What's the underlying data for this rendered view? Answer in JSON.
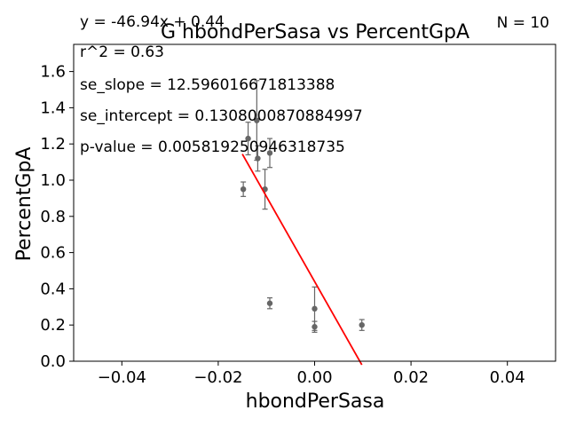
{
  "chart_data": {
    "type": "scatter",
    "title": "G hbondPerSasa vs PercentGpA",
    "xlabel": "hbondPerSasa",
    "ylabel": "PercentGpA",
    "xlim": [
      -0.05,
      0.05
    ],
    "ylim": [
      0.0,
      1.75
    ],
    "xticks": [
      -0.04,
      -0.02,
      0.0,
      0.02,
      0.04
    ],
    "xtick_labels": [
      "−0.04",
      "−0.02",
      "0.00",
      "0.02",
      "0.04"
    ],
    "yticks": [
      0.0,
      0.2,
      0.4,
      0.6,
      0.8,
      1.0,
      1.2,
      1.4,
      1.6
    ],
    "ytick_labels": [
      "0.0",
      "0.2",
      "0.4",
      "0.6",
      "0.8",
      "1.0",
      "1.2",
      "1.4",
      "1.6"
    ],
    "grid": false,
    "points": [
      {
        "x": -0.0148,
        "y": 0.95,
        "err": 0.04
      },
      {
        "x": -0.0138,
        "y": 1.23,
        "err": 0.09
      },
      {
        "x": -0.012,
        "y": 1.33,
        "err": 0.22
      },
      {
        "x": -0.0118,
        "y": 1.12,
        "err": 0.07
      },
      {
        "x": -0.0103,
        "y": 0.95,
        "err": 0.11
      },
      {
        "x": -0.0093,
        "y": 1.15,
        "err": 0.08
      },
      {
        "x": -0.0093,
        "y": 0.32,
        "err": 0.03
      },
      {
        "x": 0.0,
        "y": 0.29,
        "err": 0.12
      },
      {
        "x": 0.0,
        "y": 0.19,
        "err": 0.03
      },
      {
        "x": 0.0098,
        "y": 0.2,
        "err": 0.03
      }
    ],
    "marker_color": "#666666",
    "fit_line": {
      "slope": -46.94,
      "intercept": 0.44,
      "x_range": [
        -0.015,
        0.0098
      ],
      "color": "#ff0000"
    },
    "annotations": {
      "equation": "y = -46.94x + 0.44",
      "r2": "r^2 = 0.63",
      "se_slope": "se_slope = 12.596016671813388",
      "se_intercept": "se_intercept = 0.1308000870884997",
      "p_value": "p-value = 0.005819250946318735",
      "n": "N = 10"
    }
  }
}
